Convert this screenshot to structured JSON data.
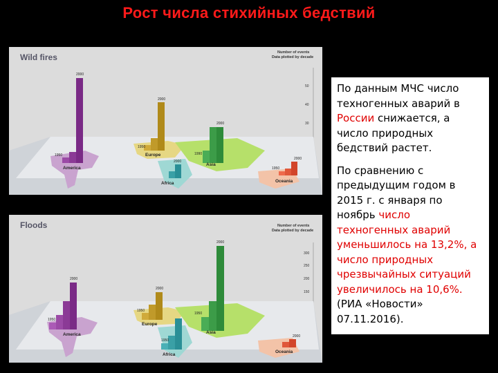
{
  "title": "Рост числа стихийных бедствий",
  "panels": [
    {
      "title": "Wild fires",
      "legend_line1": "Number of events",
      "legend_line2": "Data plotted by decade",
      "ticks": [
        "50",
        "40",
        "30",
        "20",
        "10"
      ],
      "regions": [
        "America",
        "Europe",
        "Asia",
        "Africa",
        "Oceania"
      ],
      "years": [
        "2000",
        "1950",
        "2000",
        "2000",
        "1950",
        "2000",
        "1990",
        "2000",
        "1950"
      ]
    },
    {
      "title": "Floods",
      "legend_line1": "Number of events",
      "legend_line2": "Data plotted by decade",
      "ticks": [
        "300",
        "250",
        "200",
        "150",
        "100",
        "50"
      ],
      "regions": [
        "America",
        "Europe",
        "Asia",
        "Africa",
        "Oceania"
      ],
      "years": [
        "2000",
        "1950",
        "2000",
        "1950",
        "2000",
        "1950",
        "1950",
        "2000"
      ]
    }
  ],
  "text": {
    "p1_a": "По данным МЧС число техногенных аварий в ",
    "p1_red": "России",
    "p1_b": " снижается, а число природных бедствий растет.",
    "p2_a": "По сравнению с предыдущим годом в 2015 г. с января по ноябрь ",
    "p2_red1": "число техногенных аварий уменьшилось на 13,2%, а число природных чрезвычайных ситуаций увеличилось на 10,6%.",
    "p2_b": " (РИА «Новости» 07.11.2016)."
  },
  "colors": {
    "title": "#ff1a1a",
    "america": "#7a2a86",
    "europe": "#b08a1a",
    "asia": "#2e8b3a",
    "africa": "#2a8f96",
    "oceania": "#d2452a"
  }
}
